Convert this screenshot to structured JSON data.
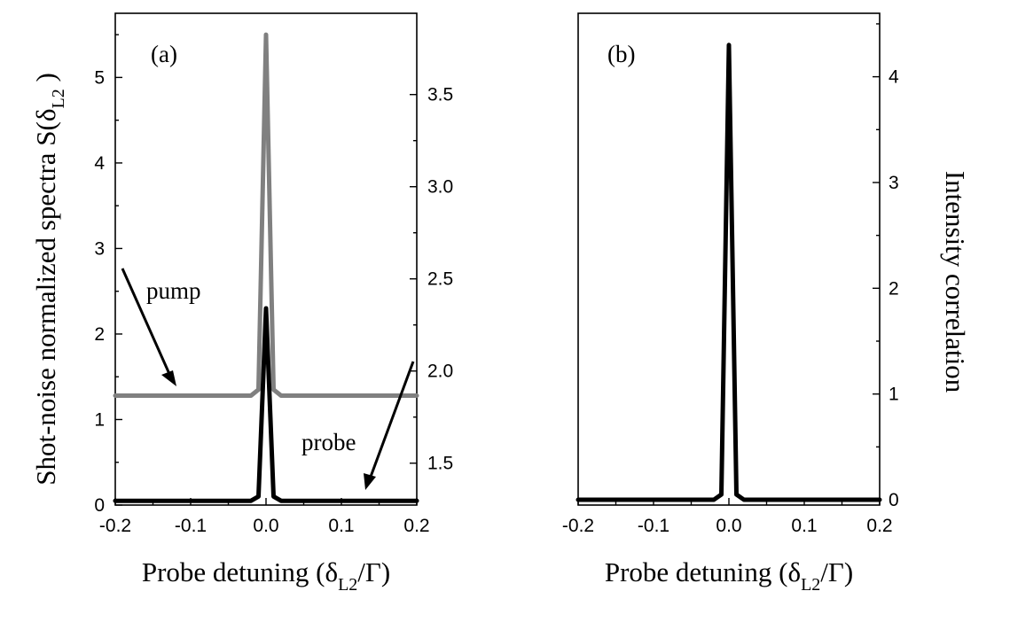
{
  "chart_data": [
    {
      "type": "line",
      "panel": "(a)",
      "xlabel": {
        "main": "Probe detuning (δ",
        "sub": "L2",
        "tail": "/Γ)"
      },
      "ylabel": {
        "main": "Shot-noise normalized spectra S(δ",
        "sub": "L2",
        "tail": " )"
      },
      "x_ticks": [
        "-0.2",
        "-0.1",
        "0.0",
        "0.1",
        "0.2"
      ],
      "y_ticks": [
        "0",
        "1",
        "2",
        "3",
        "4",
        "5"
      ],
      "y2_ticks": [
        "1.5",
        "2.0",
        "2.5",
        "3.0",
        "3.5"
      ],
      "xlim": [
        -0.2,
        0.2
      ],
      "ylim": [
        0,
        5.75
      ],
      "y2lim": [
        1.2727,
        3.9409
      ],
      "series": [
        {
          "name": "pump",
          "color": "#808080",
          "x": [
            -0.2,
            -0.02,
            -0.01,
            0.0,
            0.01,
            0.02,
            0.2
          ],
          "y": [
            1.28,
            1.28,
            1.35,
            5.5,
            1.35,
            1.28,
            1.28
          ]
        },
        {
          "name": "probe",
          "color": "#000000",
          "x": [
            -0.2,
            -0.02,
            -0.01,
            0.0,
            0.01,
            0.02,
            0.2
          ],
          "y": [
            0.05,
            0.05,
            0.1,
            2.3,
            0.1,
            0.05,
            0.05
          ]
        }
      ],
      "annotations": [
        {
          "text": "pump",
          "arrow_to": [
            -0.12,
            1.28
          ]
        },
        {
          "text": "probe",
          "arrow_to": [
            0.12,
            0.05
          ]
        }
      ]
    },
    {
      "type": "line",
      "panel": "(b)",
      "xlabel": {
        "main": "Probe detuning (δ",
        "sub": "L2",
        "tail": "/Γ)"
      },
      "ylabel": {
        "main": "Intensity correlation",
        "sub": "",
        "tail": ""
      },
      "x_ticks": [
        "-0.2",
        "-0.1",
        "0.0",
        "0.1",
        "0.2"
      ],
      "y_ticks": [
        "0",
        "1",
        "2",
        "3",
        "4"
      ],
      "xlim": [
        -0.2,
        0.2
      ],
      "ylim": [
        -0.05,
        4.6
      ],
      "series": [
        {
          "name": "",
          "color": "#000000",
          "x": [
            -0.2,
            -0.02,
            -0.01,
            0.0,
            0.01,
            0.02,
            0.2
          ],
          "y": [
            0.0,
            0.0,
            0.05,
            4.3,
            0.05,
            0.0,
            0.0
          ]
        }
      ]
    }
  ]
}
